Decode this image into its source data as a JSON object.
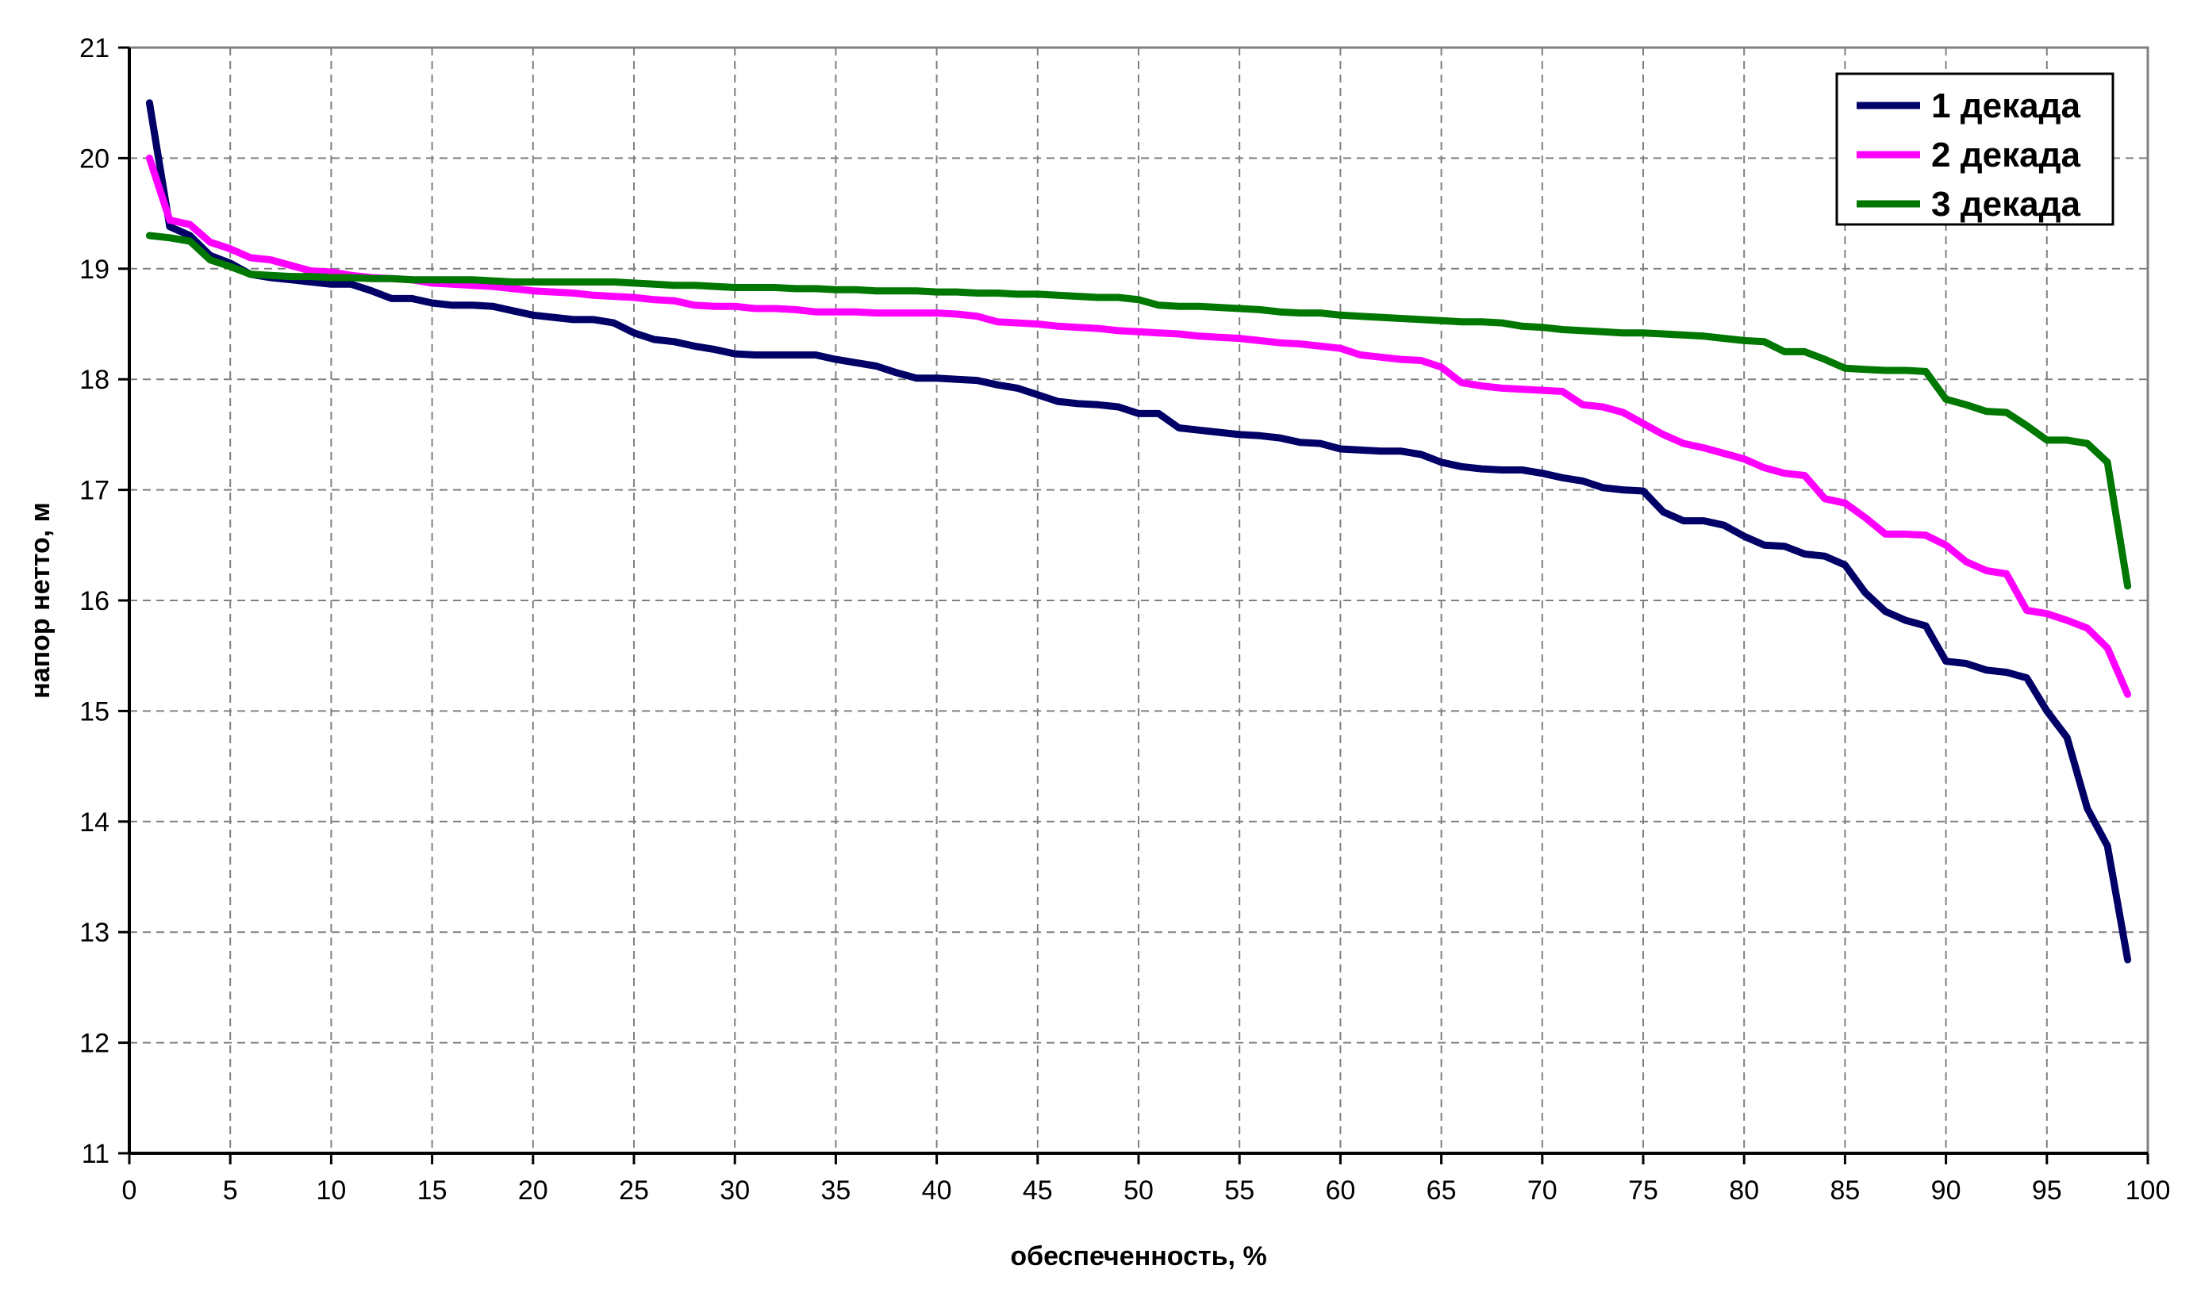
{
  "chart_data": {
    "type": "line",
    "xlabel": "обеспеченность, %",
    "ylabel": "напор нетто, м",
    "xlim": [
      0,
      100
    ],
    "ylim": [
      11,
      21
    ],
    "xticks": [
      "0",
      "5",
      "10",
      "15",
      "20",
      "25",
      "30",
      "35",
      "40",
      "45",
      "50",
      "55",
      "60",
      "65",
      "70",
      "75",
      "80",
      "85",
      "90",
      "95",
      "100"
    ],
    "yticks": [
      "11",
      "12",
      "13",
      "14",
      "15",
      "16",
      "17",
      "18",
      "19",
      "20",
      "21"
    ],
    "grid": true,
    "legend_position": "top-right",
    "x": [
      1,
      2,
      3,
      4,
      5,
      6,
      7,
      8,
      9,
      10,
      11,
      12,
      13,
      14,
      15,
      16,
      17,
      18,
      19,
      20,
      21,
      22,
      23,
      24,
      25,
      26,
      27,
      28,
      29,
      30,
      31,
      32,
      33,
      34,
      35,
      36,
      37,
      38,
      39,
      40,
      41,
      42,
      43,
      44,
      45,
      46,
      47,
      48,
      49,
      50,
      51,
      52,
      53,
      54,
      55,
      56,
      57,
      58,
      59,
      60,
      61,
      62,
      63,
      64,
      65,
      66,
      67,
      68,
      69,
      70,
      71,
      72,
      73,
      74,
      75,
      76,
      77,
      78,
      79,
      80,
      81,
      82,
      83,
      84,
      85,
      86,
      87,
      88,
      89,
      90,
      91,
      92,
      93,
      94,
      95,
      96,
      97,
      98,
      99
    ],
    "series": [
      {
        "name": "1 декада",
        "color": "#000066",
        "values": [
          20.5,
          19.38,
          19.3,
          19.12,
          19.05,
          18.95,
          18.92,
          18.9,
          18.88,
          18.86,
          18.86,
          18.8,
          18.73,
          18.73,
          18.69,
          18.67,
          18.67,
          18.66,
          18.62,
          18.58,
          18.56,
          18.54,
          18.54,
          18.51,
          18.42,
          18.36,
          18.34,
          18.3,
          18.27,
          18.23,
          18.22,
          18.22,
          18.22,
          18.22,
          18.18,
          18.15,
          18.12,
          18.06,
          18.01,
          18.01,
          18.0,
          17.99,
          17.95,
          17.92,
          17.86,
          17.8,
          17.78,
          17.77,
          17.75,
          17.69,
          17.69,
          17.56,
          17.54,
          17.52,
          17.5,
          17.49,
          17.47,
          17.43,
          17.42,
          17.37,
          17.36,
          17.35,
          17.35,
          17.32,
          17.25,
          17.21,
          17.19,
          17.18,
          17.18,
          17.15,
          17.11,
          17.08,
          17.02,
          17.0,
          16.99,
          16.8,
          16.72,
          16.72,
          16.68,
          16.58,
          16.5,
          16.49,
          16.42,
          16.4,
          16.32,
          16.07,
          15.9,
          15.82,
          15.77,
          15.45,
          15.43,
          15.37,
          15.35,
          15.3,
          15.0,
          14.76,
          14.12,
          13.78,
          12.75
        ]
      },
      {
        "name": "2 декада",
        "color": "#ff00ff",
        "values": [
          20.0,
          19.44,
          19.4,
          19.24,
          19.18,
          19.1,
          19.08,
          19.03,
          18.98,
          18.97,
          18.94,
          18.92,
          18.91,
          18.9,
          18.87,
          18.86,
          18.85,
          18.84,
          18.82,
          18.8,
          18.79,
          18.78,
          18.76,
          18.75,
          18.74,
          18.72,
          18.71,
          18.67,
          18.66,
          18.66,
          18.64,
          18.64,
          18.63,
          18.61,
          18.61,
          18.61,
          18.6,
          18.6,
          18.6,
          18.6,
          18.59,
          18.57,
          18.52,
          18.51,
          18.5,
          18.48,
          18.47,
          18.46,
          18.44,
          18.43,
          18.42,
          18.41,
          18.39,
          18.38,
          18.37,
          18.35,
          18.33,
          18.32,
          18.3,
          18.28,
          18.22,
          18.2,
          18.18,
          18.17,
          18.11,
          17.97,
          17.94,
          17.92,
          17.91,
          17.9,
          17.89,
          17.77,
          17.75,
          17.7,
          17.6,
          17.5,
          17.42,
          17.38,
          17.33,
          17.28,
          17.2,
          17.15,
          17.13,
          16.92,
          16.88,
          16.75,
          16.6,
          16.6,
          16.59,
          16.5,
          16.35,
          16.27,
          16.24,
          15.91,
          15.88,
          15.82,
          15.75,
          15.57,
          15.15
        ]
      },
      {
        "name": "3 декада",
        "color": "#007700",
        "values": [
          19.3,
          19.28,
          19.25,
          19.08,
          19.02,
          18.95,
          18.94,
          18.93,
          18.93,
          18.92,
          18.92,
          18.91,
          18.91,
          18.9,
          18.9,
          18.9,
          18.9,
          18.89,
          18.88,
          18.88,
          18.88,
          18.88,
          18.88,
          18.88,
          18.87,
          18.86,
          18.85,
          18.85,
          18.84,
          18.83,
          18.83,
          18.83,
          18.82,
          18.82,
          18.81,
          18.81,
          18.8,
          18.8,
          18.8,
          18.79,
          18.79,
          18.78,
          18.78,
          18.77,
          18.77,
          18.76,
          18.75,
          18.74,
          18.74,
          18.72,
          18.67,
          18.66,
          18.66,
          18.65,
          18.64,
          18.63,
          18.61,
          18.6,
          18.6,
          18.58,
          18.57,
          18.56,
          18.55,
          18.54,
          18.53,
          18.52,
          18.52,
          18.51,
          18.48,
          18.47,
          18.45,
          18.44,
          18.43,
          18.42,
          18.42,
          18.41,
          18.4,
          18.39,
          18.37,
          18.35,
          18.34,
          18.25,
          18.25,
          18.18,
          18.1,
          18.09,
          18.08,
          18.08,
          18.07,
          17.82,
          17.77,
          17.71,
          17.7,
          17.58,
          17.45,
          17.45,
          17.42,
          17.25,
          16.13
        ]
      }
    ]
  }
}
